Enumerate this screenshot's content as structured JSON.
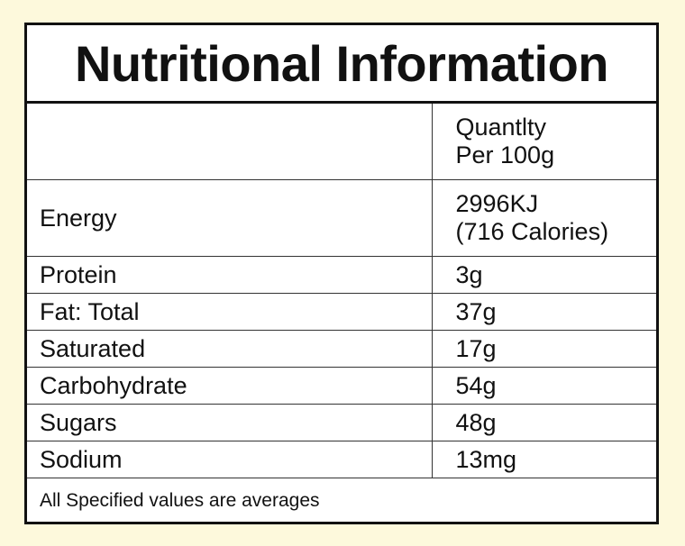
{
  "title": "Nutritional Information",
  "table": {
    "header": [
      "Quantlty",
      "Per 100g"
    ],
    "rows": [
      {
        "label": "Energy",
        "value": [
          "2996KJ",
          "(716 Calories)"
        ]
      },
      {
        "label": "Protein",
        "value": "3g"
      },
      {
        "label": "Fat: Total",
        "value": "37g"
      },
      {
        "label": "Saturated",
        "value": "17g"
      },
      {
        "label": "Carbohydrate",
        "value": "54g"
      },
      {
        "label": "Sugars",
        "value": "48g"
      },
      {
        "label": "Sodium",
        "value": "13mg"
      }
    ]
  },
  "footnote": "All Specified values are averages"
}
